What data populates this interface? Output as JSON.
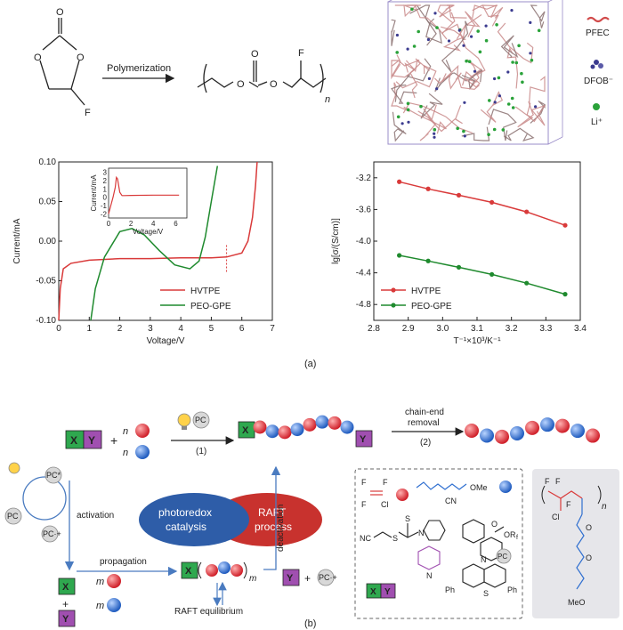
{
  "reaction": {
    "arrow_label": "Polymerization",
    "substituent": "F",
    "subscript": "n",
    "o_atom": "O"
  },
  "md_legend": [
    {
      "label": "PFEC",
      "color": "#d14a4a"
    },
    {
      "label": "DFOB⁻",
      "color": "#3b3b8f"
    },
    {
      "label": "Li⁺",
      "color": "#2aa23a"
    }
  ],
  "lsv_chart": {
    "type": "line",
    "xlabel": "Voltage/V",
    "ylabel": "Current/mA",
    "xlim": [
      0,
      7
    ],
    "ylim": [
      -0.1,
      0.1
    ],
    "x_ticks": [
      "0",
      "1",
      "2",
      "3",
      "4",
      "5",
      "6",
      "7"
    ],
    "y_ticks": [
      "-0.10",
      "-0.05",
      "0.00",
      "0.05",
      "0.10"
    ],
    "legend": [
      "HVTPE",
      "PEO-GPE"
    ],
    "series_colors": [
      "#d93a3a",
      "#1f8a2e"
    ],
    "series": [
      {
        "name": "HVTPE",
        "x": [
          0,
          0.05,
          0.15,
          0.4,
          1,
          2,
          3,
          4,
          5,
          5.5,
          6,
          6.2,
          6.35,
          6.45,
          6.5
        ],
        "y": [
          -0.1,
          -0.06,
          -0.035,
          -0.028,
          -0.024,
          -0.022,
          -0.022,
          -0.021,
          -0.021,
          -0.02,
          -0.015,
          0.0,
          0.03,
          0.07,
          0.1
        ]
      },
      {
        "name": "PEO-GPE",
        "x": [
          1.05,
          1.2,
          1.5,
          2.0,
          2.4,
          2.8,
          3.3,
          3.8,
          4.3,
          4.6,
          4.8,
          5.0,
          5.2
        ],
        "y": [
          -0.1,
          -0.06,
          -0.02,
          0.012,
          0.016,
          0.008,
          -0.012,
          -0.03,
          -0.035,
          -0.025,
          0.005,
          0.05,
          0.095
        ]
      }
    ],
    "inset": {
      "xlabel": "Voltage/V",
      "ylabel": "Current/mA",
      "x_ticks": [
        "0",
        "2",
        "4",
        "6"
      ],
      "y_ticks": [
        "-2",
        "-1",
        "0",
        "1",
        "2",
        "3"
      ],
      "x": [
        0,
        0.2,
        0.4,
        0.6,
        0.7,
        0.8,
        1.0,
        1.2,
        1.4,
        2,
        4,
        6.3
      ],
      "y": [
        -2,
        -1,
        0,
        1.2,
        2.4,
        2.2,
        0.6,
        0.2,
        0.2,
        0.22,
        0.25,
        0.25
      ]
    }
  },
  "cond_chart": {
    "type": "line",
    "xlabel": "T⁻¹×10³/K⁻¹",
    "ylabel": "lg[σ/(S/cm)]",
    "xlim": [
      2.8,
      3.4
    ],
    "ylim": [
      -5.0,
      -3.0
    ],
    "x_ticks": [
      "2.8",
      "2.9",
      "3.0",
      "3.1",
      "3.2",
      "3.3",
      "3.4"
    ],
    "y_ticks": [
      "-3.2",
      "-3.6",
      "-4.0",
      "-4.4",
      "-4.8"
    ],
    "legend": [
      "HVTPE",
      "PEO-GPE"
    ],
    "series_colors": [
      "#d93a3a",
      "#1f8a2e"
    ],
    "series": [
      {
        "name": "HVTPE",
        "x": [
          2.874,
          2.958,
          3.047,
          3.143,
          3.244,
          3.356
        ],
        "y": [
          -3.25,
          -3.34,
          -3.42,
          -3.51,
          -3.63,
          -3.8
        ]
      },
      {
        "name": "PEO-GPE",
        "x": [
          2.874,
          2.958,
          3.047,
          3.143,
          3.244,
          3.356
        ],
        "y": [
          -4.18,
          -4.25,
          -4.33,
          -4.42,
          -4.53,
          -4.67
        ]
      }
    ]
  },
  "caption_a": "(a)",
  "caption_b": "(b)",
  "scheme": {
    "x_label": "X",
    "y_label": "Y",
    "pc_label": "PC",
    "n": "n",
    "m": "m",
    "plus": "+",
    "step1": "(1)",
    "step2": "(2)",
    "chain_end_1": "chain-end",
    "chain_end_2": "removal",
    "activation": "activation",
    "propagation": "propagation",
    "deactivation": "deactivation",
    "raft_eq": "RAFT equilibrium",
    "photoredox_1": "photoredox",
    "photoredox_2": "catalysis",
    "raft_1": "RAFT",
    "raft_2": "process",
    "pc_star": "PC*",
    "pc_cation": "PC·+",
    "x_rad": "X·",
    "y_anion": "Y·−",
    "struct": {
      "F": "F",
      "Cl": "Cl",
      "OMe": "OMe",
      "MeO": "MeO",
      "CN": "CN",
      "NC": "NC",
      "S": "S",
      "N": "N",
      "O": "O",
      "ORf": "OR",
      "f": "f",
      "Ph": "Ph",
      "n": "n"
    }
  },
  "colors": {
    "red_ball": "#e0303a",
    "blue_ball": "#2f6fd0",
    "x_box": "#2fa84f",
    "y_box": "#a04fb0",
    "photoredox": "#2e5da8",
    "raft": "#c8322e",
    "arrow_blue": "#4a7bc0"
  }
}
